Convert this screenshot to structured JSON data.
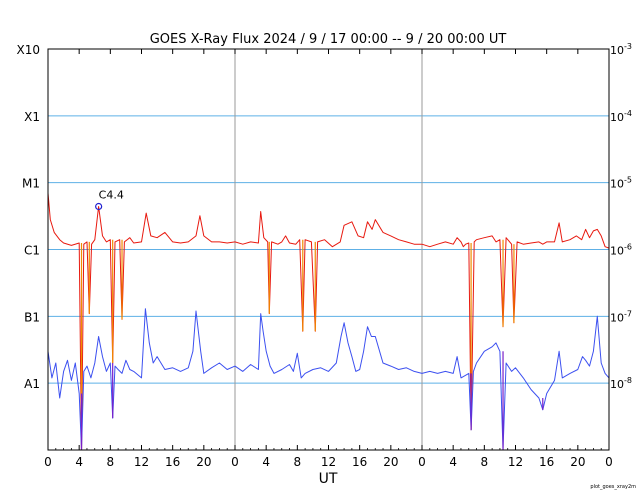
{
  "chart_data": {
    "type": "line",
    "title": "GOES X-Ray Flux   2024  /  9  /  17   00:00 --  9  /  20   00:00   UT",
    "xlabel": "UT",
    "footer": "plot_goes_xray2m",
    "x_ticks": [
      "0",
      "4",
      "8",
      "12",
      "16",
      "20",
      "0",
      "4",
      "8",
      "12",
      "16",
      "20",
      "0",
      "4",
      "8",
      "12",
      "16",
      "20",
      "0"
    ],
    "x_range_hours": [
      0,
      72
    ],
    "day_separators_hours": [
      24,
      48
    ],
    "y_scale": "log",
    "y_range": [
      1e-09,
      0.001
    ],
    "class_labels": [
      {
        "label": "A1",
        "value": 1e-08
      },
      {
        "label": "B1",
        "value": 1e-07
      },
      {
        "label": "C1",
        "value": 1e-06
      },
      {
        "label": "M1",
        "value": 1e-05
      },
      {
        "label": "X1",
        "value": 0.0001
      },
      {
        "label": "X10",
        "value": 0.001
      }
    ],
    "right_labels": [
      {
        "label": "10-8",
        "value": 1e-08
      },
      {
        "label": "10-7",
        "value": 1e-07
      },
      {
        "label": "10-6",
        "value": 1e-06
      },
      {
        "label": "10-5",
        "value": 1e-05
      },
      {
        "label": "10-4",
        "value": 0.0001
      },
      {
        "label": "10-3",
        "value": 0.001
      }
    ],
    "annotation": {
      "label": "C4.4",
      "x": 6.5,
      "y": 4.4e-06
    },
    "colors": {
      "long": "#e8190f",
      "long_gap": "#f08c00",
      "short": "#3c50f0",
      "short_gap": "#7a1fc8",
      "grid": "#5eb0e6",
      "sep": "#9a9a9a",
      "marker": "#2020d0"
    },
    "series": [
      {
        "channel": "long",
        "points": [
          [
            0,
            7e-06
          ],
          [
            0.3,
            2.8e-06
          ],
          [
            0.8,
            1.8e-06
          ],
          [
            1.5,
            1.4e-06
          ],
          [
            2,
            1.25e-06
          ],
          [
            3,
            1.15e-06
          ],
          [
            4,
            1.25e-06
          ],
          [
            4.3,
            1e-09
          ],
          [
            4.6,
            1.2e-06
          ],
          [
            5,
            1.3e-06
          ],
          [
            5.3,
            1.1e-07
          ],
          [
            5.6,
            1.2e-06
          ],
          [
            6,
            1.4e-06
          ],
          [
            6.5,
            4.4e-06
          ],
          [
            7,
            1.6e-06
          ],
          [
            7.5,
            1.3e-06
          ],
          [
            8,
            1.4e-06
          ],
          [
            8.3,
            2e-08
          ],
          [
            8.6,
            1.3e-06
          ],
          [
            9.2,
            1.4e-06
          ],
          [
            9.5,
            9e-08
          ],
          [
            9.8,
            1.3e-06
          ],
          [
            10.5,
            1.5e-06
          ],
          [
            11,
            1.25e-06
          ],
          [
            12,
            1.3e-06
          ],
          [
            12.6,
            3.5e-06
          ],
          [
            13.2,
            1.6e-06
          ],
          [
            14,
            1.5e-06
          ],
          [
            15,
            1.8e-06
          ],
          [
            16,
            1.3e-06
          ],
          [
            17,
            1.25e-06
          ],
          [
            18,
            1.3e-06
          ],
          [
            19,
            1.6e-06
          ],
          [
            19.5,
            3.2e-06
          ],
          [
            20,
            1.6e-06
          ],
          [
            21,
            1.3e-06
          ],
          [
            22,
            1.3e-06
          ],
          [
            23,
            1.25e-06
          ],
          [
            24,
            1.3e-06
          ],
          [
            25,
            1.2e-06
          ],
          [
            26,
            1.3e-06
          ],
          [
            27,
            1.25e-06
          ],
          [
            27.3,
            3.7e-06
          ],
          [
            27.7,
            1.5e-06
          ],
          [
            28.2,
            1.3e-06
          ],
          [
            28.4,
            1.1e-07
          ],
          [
            28.7,
            1.3e-06
          ],
          [
            29.5,
            1.2e-06
          ],
          [
            30,
            1.3e-06
          ],
          [
            30.5,
            1.6e-06
          ],
          [
            31,
            1.25e-06
          ],
          [
            31.8,
            1.2e-06
          ],
          [
            32.3,
            1.4e-06
          ],
          [
            32.7,
            6e-08
          ],
          [
            33,
            1.4e-06
          ],
          [
            33.8,
            1.3e-06
          ],
          [
            34.3,
            6e-08
          ],
          [
            34.6,
            1.3e-06
          ],
          [
            35.5,
            1.4e-06
          ],
          [
            36.5,
            1.1e-06
          ],
          [
            37.5,
            1.3e-06
          ],
          [
            38,
            2.3e-06
          ],
          [
            39,
            2.6e-06
          ],
          [
            39.8,
            1.6e-06
          ],
          [
            40.5,
            1.5e-06
          ],
          [
            41,
            2.6e-06
          ],
          [
            41.6,
            2e-06
          ],
          [
            42,
            2.8e-06
          ],
          [
            43,
            1.8e-06
          ],
          [
            44,
            1.6e-06
          ],
          [
            45,
            1.4e-06
          ],
          [
            46,
            1.3e-06
          ],
          [
            47,
            1.2e-06
          ],
          [
            48,
            1.2e-06
          ],
          [
            49,
            1.1e-06
          ],
          [
            50,
            1.2e-06
          ],
          [
            51,
            1.3e-06
          ],
          [
            52,
            1.2e-06
          ],
          [
            52.5,
            1.5e-06
          ],
          [
            53,
            1.3e-06
          ],
          [
            53.3,
            1.1e-06
          ],
          [
            53.6,
            1.2e-06
          ],
          [
            54,
            1.25e-06
          ],
          [
            54.3,
            2e-09
          ],
          [
            54.7,
            1.3e-06
          ],
          [
            55,
            1.4e-06
          ],
          [
            56,
            1.5e-06
          ],
          [
            57,
            1.6e-06
          ],
          [
            57.5,
            1.3e-06
          ],
          [
            58,
            1.4e-06
          ],
          [
            58.4,
            7e-08
          ],
          [
            58.8,
            1.5e-06
          ],
          [
            59.5,
            1.2e-06
          ],
          [
            59.8,
            8e-08
          ],
          [
            60.2,
            1.3e-06
          ],
          [
            61,
            1.2e-06
          ],
          [
            62,
            1.25e-06
          ],
          [
            63,
            1.3e-06
          ],
          [
            63.5,
            1.2e-06
          ],
          [
            64,
            1.3e-06
          ],
          [
            65,
            1.3e-06
          ],
          [
            65.6,
            2.5e-06
          ],
          [
            66,
            1.3e-06
          ],
          [
            67,
            1.4e-06
          ],
          [
            67.8,
            1.6e-06
          ],
          [
            68.5,
            1.4e-06
          ],
          [
            69,
            2e-06
          ],
          [
            69.5,
            1.5e-06
          ],
          [
            70,
            1.9e-06
          ],
          [
            70.5,
            2e-06
          ],
          [
            71,
            1.6e-06
          ],
          [
            71.5,
            1.1e-06
          ],
          [
            72,
            1.05e-06
          ]
        ]
      },
      {
        "channel": "short",
        "points": [
          [
            0,
            3e-08
          ],
          [
            0.5,
            1.2e-08
          ],
          [
            1,
            2e-08
          ],
          [
            1.5,
            6e-09
          ],
          [
            2,
            1.5e-08
          ],
          [
            2.5,
            2.2e-08
          ],
          [
            3,
            1.1e-08
          ],
          [
            3.5,
            2e-08
          ],
          [
            4,
            7e-09
          ],
          [
            4.3,
            1e-09
          ],
          [
            4.6,
            1.5e-08
          ],
          [
            5,
            1.8e-08
          ],
          [
            5.5,
            1.2e-08
          ],
          [
            6,
            2e-08
          ],
          [
            6.5,
            5e-08
          ],
          [
            7,
            2.5e-08
          ],
          [
            7.5,
            1.5e-08
          ],
          [
            8,
            2e-08
          ],
          [
            8.3,
            3e-09
          ],
          [
            8.6,
            1.8e-08
          ],
          [
            9,
            1.6e-08
          ],
          [
            9.5,
            1.4e-08
          ],
          [
            10,
            2.2e-08
          ],
          [
            10.5,
            1.6e-08
          ],
          [
            11,
            1.5e-08
          ],
          [
            12,
            1.2e-08
          ],
          [
            12.5,
            1.3e-07
          ],
          [
            13,
            4e-08
          ],
          [
            13.5,
            2e-08
          ],
          [
            14,
            2.5e-08
          ],
          [
            15,
            1.6e-08
          ],
          [
            16,
            1.7e-08
          ],
          [
            17,
            1.5e-08
          ],
          [
            18,
            1.7e-08
          ],
          [
            18.6,
            3e-08
          ],
          [
            19,
            1.2e-07
          ],
          [
            19.6,
            3e-08
          ],
          [
            20,
            1.4e-08
          ],
          [
            21,
            1.7e-08
          ],
          [
            22,
            2e-08
          ],
          [
            23,
            1.6e-08
          ],
          [
            24,
            1.8e-08
          ],
          [
            25,
            1.5e-08
          ],
          [
            26,
            1.9e-08
          ],
          [
            27,
            1.6e-08
          ],
          [
            27.3,
            1.1e-07
          ],
          [
            27.6,
            6e-08
          ],
          [
            28,
            3e-08
          ],
          [
            28.5,
            1.8e-08
          ],
          [
            29,
            1.4e-08
          ],
          [
            30,
            1.6e-08
          ],
          [
            31,
            1.9e-08
          ],
          [
            31.5,
            1.5e-08
          ],
          [
            32,
            2.8e-08
          ],
          [
            32.5,
            1.2e-08
          ],
          [
            33,
            1.4e-08
          ],
          [
            34,
            1.6e-08
          ],
          [
            35,
            1.7e-08
          ],
          [
            36,
            1.5e-08
          ],
          [
            37,
            2e-08
          ],
          [
            37.6,
            5e-08
          ],
          [
            38,
            8e-08
          ],
          [
            38.5,
            4e-08
          ],
          [
            39,
            2.5e-08
          ],
          [
            39.5,
            1.5e-08
          ],
          [
            40,
            1.6e-08
          ],
          [
            40.5,
            3e-08
          ],
          [
            41,
            7e-08
          ],
          [
            41.5,
            5e-08
          ],
          [
            42,
            5e-08
          ],
          [
            43,
            2e-08
          ],
          [
            44,
            1.8e-08
          ],
          [
            45,
            1.6e-08
          ],
          [
            46,
            1.7e-08
          ],
          [
            47,
            1.5e-08
          ],
          [
            48,
            1.4e-08
          ],
          [
            49,
            1.5e-08
          ],
          [
            50,
            1.4e-08
          ],
          [
            51,
            1.5e-08
          ],
          [
            52,
            1.4e-08
          ],
          [
            52.5,
            2.5e-08
          ],
          [
            53,
            1.2e-08
          ],
          [
            54,
            1.4e-08
          ],
          [
            54.3,
            2e-09
          ],
          [
            54.6,
            1.5e-08
          ],
          [
            55,
            2e-08
          ],
          [
            56,
            3e-08
          ],
          [
            57,
            3.5e-08
          ],
          [
            57.5,
            4e-08
          ],
          [
            58,
            3e-08
          ],
          [
            58.4,
            1e-09
          ],
          [
            58.8,
            2e-08
          ],
          [
            59.5,
            1.5e-08
          ],
          [
            60,
            1.7e-08
          ],
          [
            61,
            1.2e-08
          ],
          [
            62,
            8e-09
          ],
          [
            63,
            6e-09
          ],
          [
            63.5,
            4e-09
          ],
          [
            64,
            7e-09
          ],
          [
            65,
            1.1e-08
          ],
          [
            65.6,
            3e-08
          ],
          [
            66,
            1.2e-08
          ],
          [
            67,
            1.4e-08
          ],
          [
            68,
            1.6e-08
          ],
          [
            68.6,
            2.5e-08
          ],
          [
            69,
            2.2e-08
          ],
          [
            69.5,
            1.8e-08
          ],
          [
            70,
            3e-08
          ],
          [
            70.5,
            1e-07
          ],
          [
            71,
            2e-08
          ],
          [
            71.5,
            1.4e-08
          ],
          [
            72,
            1.2e-08
          ]
        ]
      }
    ]
  }
}
